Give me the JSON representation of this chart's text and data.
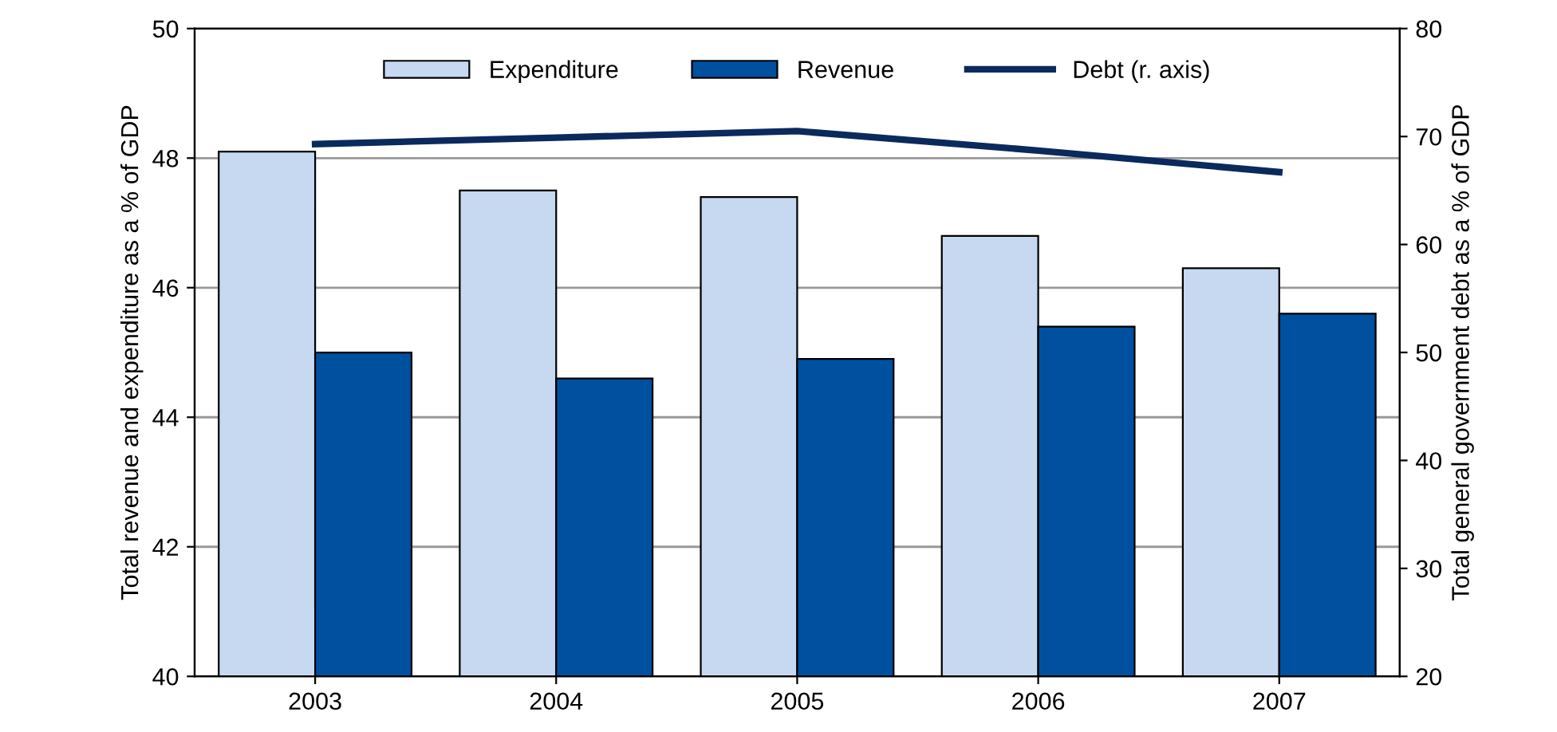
{
  "chart_data": {
    "type": "bar",
    "categories": [
      "2003",
      "2004",
      "2005",
      "2006",
      "2007"
    ],
    "ylabel": "Total revenue and expenditure as a % of GDP",
    "y2label": "Total general government debt as a % of GDP",
    "series": [
      {
        "name": "Expenditure",
        "color": "#c6d9f1",
        "values": [
          48.1,
          47.5,
          47.4,
          46.8,
          46.3
        ]
      },
      {
        "name": "Revenue",
        "color": "#0050a0",
        "values": [
          45.0,
          44.6,
          44.9,
          45.4,
          45.6
        ]
      },
      {
        "name": "Debt (r. axis)",
        "type": "line",
        "axis": "y2",
        "color": "#0a2a5e",
        "values": [
          69.3,
          69.9,
          70.5,
          68.7,
          66.7
        ]
      }
    ],
    "ylim": [
      40,
      50
    ],
    "yticks": [
      40,
      42,
      44,
      46,
      48,
      50
    ],
    "y2lim": [
      20,
      80
    ],
    "y2ticks": [
      20,
      30,
      40,
      50,
      60,
      70,
      80
    ],
    "grid": "y",
    "legend": "top",
    "marker": "none",
    "line_style": "solid"
  }
}
